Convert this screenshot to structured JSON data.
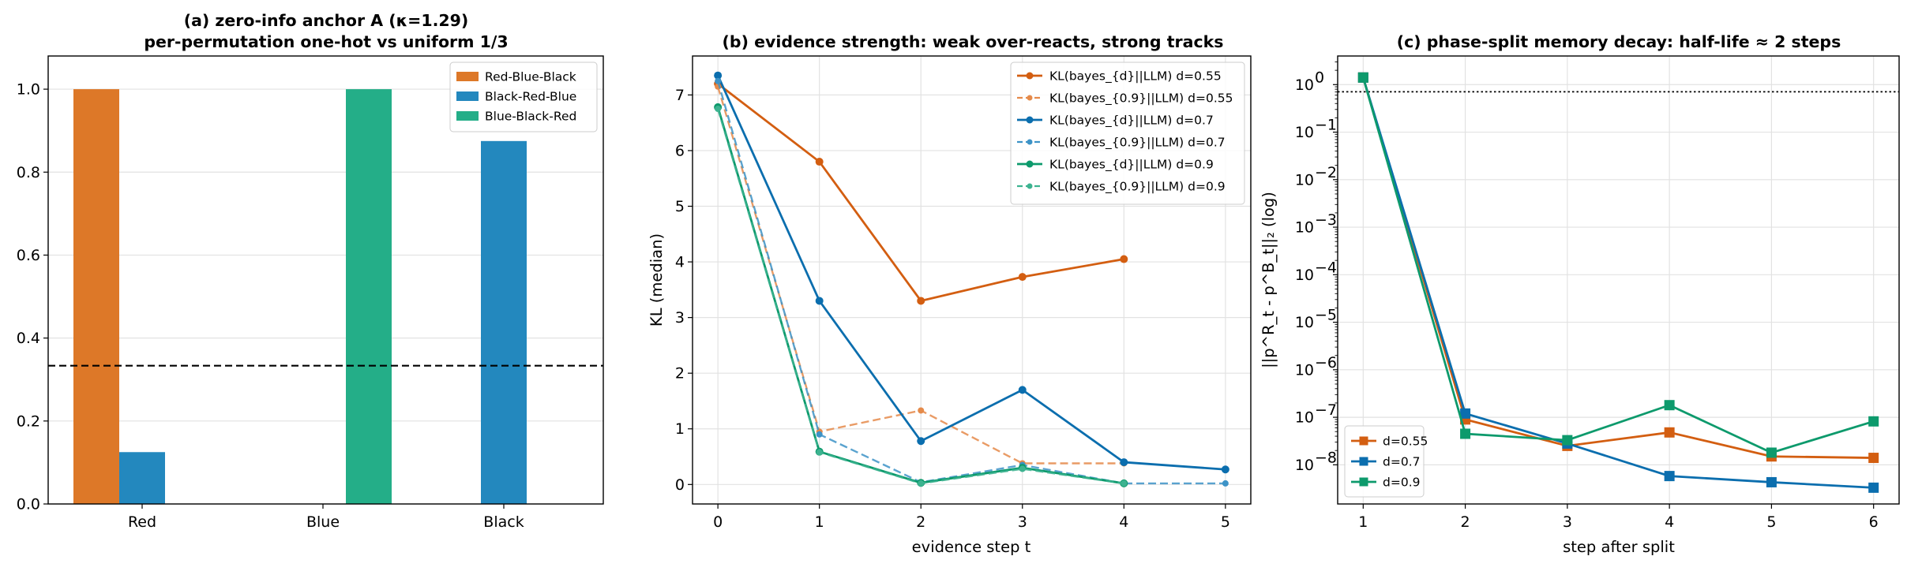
{
  "chart_data": [
    {
      "type": "bar",
      "title_lines": [
        "(a) zero-info anchor A (κ=1.29)",
        "per-permutation one-hot vs uniform 1/3"
      ],
      "categories": [
        "Red",
        "Blue",
        "Black"
      ],
      "series": [
        {
          "name": "Red-Blue-Black",
          "color": "#DD7828",
          "values": [
            1.0,
            0.0,
            0.0
          ]
        },
        {
          "name": "Black-Red-Blue",
          "color": "#2388BE",
          "values": [
            0.125,
            0.0,
            0.875
          ]
        },
        {
          "name": "Blue-Black-Red",
          "color": "#24AE88",
          "values": [
            0.0,
            1.0,
            0.0
          ]
        }
      ],
      "reference_line": {
        "y": 0.3333,
        "style": "dashed",
        "color": "#000000"
      },
      "ylim": [
        0,
        1.08
      ],
      "yticks": [
        "0.0",
        "0.2",
        "0.4",
        "0.6",
        "0.8",
        "1.0"
      ],
      "legend_position": "upper-right",
      "grid": true
    },
    {
      "type": "line",
      "title": "(b) evidence strength: weak over-reacts, strong tracks",
      "xlabel": "evidence step t",
      "ylabel": "KL (median)",
      "xlim": [
        -0.25,
        5.25
      ],
      "ylim": [
        -0.35,
        7.7
      ],
      "xticks": [
        "0",
        "1",
        "2",
        "3",
        "4",
        "5"
      ],
      "yticks": [
        "0",
        "1",
        "2",
        "3",
        "4",
        "5",
        "6",
        "7"
      ],
      "legend_position": "upper-right",
      "grid": true,
      "series": [
        {
          "name": "KL(bayes_{d}||LLM) d=0.55",
          "color": "#D35E11",
          "style": "solid",
          "x": [
            0,
            1,
            2,
            3,
            4
          ],
          "y": [
            7.2,
            5.8,
            3.3,
            3.73,
            4.05
          ]
        },
        {
          "name": "KL(bayes_{0.9}||LLM) d=0.55",
          "color": "#E58A4A",
          "style": "dashed",
          "x": [
            0,
            1,
            2,
            3,
            4
          ],
          "y": [
            7.15,
            0.95,
            1.33,
            0.38,
            0.38
          ]
        },
        {
          "name": "KL(bayes_{d}||LLM) d=0.7",
          "color": "#0B6EAE",
          "style": "solid",
          "x": [
            0,
            1,
            2,
            3,
            4,
            5
          ],
          "y": [
            7.35,
            3.3,
            0.78,
            1.7,
            0.4,
            0.27
          ]
        },
        {
          "name": "KL(bayes_{0.9}||LLM) d=0.7",
          "color": "#3D93C7",
          "style": "dashed",
          "x": [
            0,
            1,
            2,
            3,
            4,
            5
          ],
          "y": [
            7.25,
            0.9,
            0.04,
            0.35,
            0.02,
            0.02
          ]
        },
        {
          "name": "KL(bayes_{d}||LLM) d=0.9",
          "color": "#0D9A6C",
          "style": "solid",
          "x": [
            0,
            1,
            2,
            3,
            4
          ],
          "y": [
            6.78,
            0.59,
            0.03,
            0.3,
            0.02
          ]
        },
        {
          "name": "KL(bayes_{0.9}||LLM) d=0.9",
          "color": "#3DB390",
          "style": "dashed",
          "x": [
            0,
            1,
            2,
            3,
            4
          ],
          "y": [
            6.75,
            0.58,
            0.02,
            0.28,
            0.02
          ]
        }
      ]
    },
    {
      "type": "line",
      "title": "(c) phase-split memory decay: half-life ≈ 2 steps",
      "xlabel": "step after split",
      "ylabel": "||p^R_t - p^B_t||₂ (log)",
      "yscale": "log",
      "xlim": [
        0.75,
        6.25
      ],
      "ylim": [
        1.5e-09,
        4
      ],
      "xticks": [
        "1",
        "2",
        "3",
        "4",
        "5",
        "6"
      ],
      "ytick_exponents": [
        "0",
        "-1",
        "-2",
        "-3",
        "-4",
        "-5",
        "-6",
        "-7",
        "-8"
      ],
      "reference_line": {
        "y": 0.707,
        "style": "dotted",
        "color": "#000000"
      },
      "legend_position": "lower-left",
      "grid": true,
      "series": [
        {
          "name": "d=0.55",
          "color": "#D35E11",
          "x": [
            1,
            2,
            3,
            4,
            5,
            6
          ],
          "y": [
            1.41,
            9e-08,
            2.5e-08,
            4.8e-08,
            1.5e-08,
            1.4e-08
          ]
        },
        {
          "name": "d=0.7",
          "color": "#0B6EAE",
          "x": [
            1,
            2,
            3,
            4,
            5,
            6
          ],
          "y": [
            1.41,
            1.2e-07,
            2.8e-08,
            5.8e-09,
            4.3e-09,
            3.3e-09
          ]
        },
        {
          "name": "d=0.9",
          "color": "#0D9A6C",
          "x": [
            1,
            2,
            3,
            4,
            5,
            6
          ],
          "y": [
            1.41,
            4.5e-08,
            3.3e-08,
            1.8e-07,
            1.8e-08,
            8.2e-08
          ]
        }
      ]
    }
  ]
}
